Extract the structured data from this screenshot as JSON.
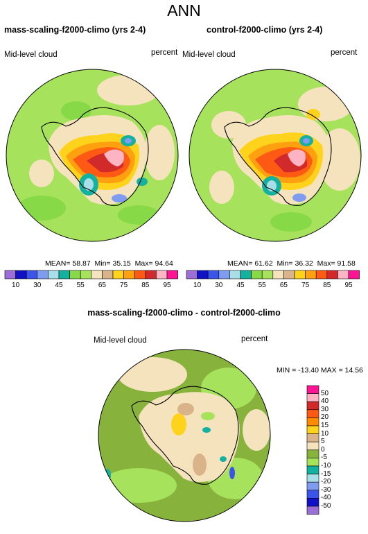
{
  "figure_title": "ANN",
  "colors": {
    "abs_palette": [
      "#9b6fd6",
      "#1111c8",
      "#3a55e8",
      "#7f9cf0",
      "#a9dde7",
      "#14b0a0",
      "#87d948",
      "#a6e25b",
      "#f5e3bd",
      "#d9b48a",
      "#ffd31c",
      "#ffa010",
      "#ff5a14",
      "#d22a2a",
      "#ffb4c3",
      "#ff1493"
    ],
    "diff_palette": [
      "#9b6fd6",
      "#1111c8",
      "#3a55e8",
      "#7f9cf0",
      "#a9dde7",
      "#14b0a0",
      "#a6e25b",
      "#87b23c",
      "#f5e3bd",
      "#d9b48a",
      "#ffd31c",
      "#ff8c00",
      "#ff5a14",
      "#d22a2a",
      "#ffb4c3",
      "#ff1493"
    ],
    "coastline": "#000000"
  },
  "panels": [
    {
      "title": "mass-scaling-f2000-climo (yrs 2-4)",
      "variable": "Mid-level cloud",
      "units": "percent",
      "stats": {
        "mean_label": "MEAN=",
        "mean": "58.87",
        "min_label": "Min=",
        "min": "35.15",
        "max_label": "Max=",
        "max": "94.64"
      }
    },
    {
      "title": "control-f2000-climo (yrs 2-4)",
      "variable": "Mid-level cloud",
      "units": "percent",
      "stats": {
        "mean_label": "MEAN=",
        "mean": "61.62",
        "min_label": "Min=",
        "min": "36.32",
        "max_label": "Max=",
        "max": "91.58"
      }
    }
  ],
  "abs_colorbar_labels": [
    "10",
    "30",
    "45",
    "55",
    "65",
    "75",
    "85",
    "95"
  ],
  "diff_panel": {
    "title": "mass-scaling-f2000-climo - control-f2000-climo",
    "variable": "Mid-level cloud",
    "units": "percent",
    "minmax": "MIN = -13.40 MAX =  14.56",
    "colorbar_labels": [
      "50",
      "40",
      "30",
      "20",
      "15",
      "10",
      "5",
      "0",
      "-5",
      "-10",
      "-15",
      "-20",
      "-30",
      "-40",
      "-50"
    ]
  }
}
